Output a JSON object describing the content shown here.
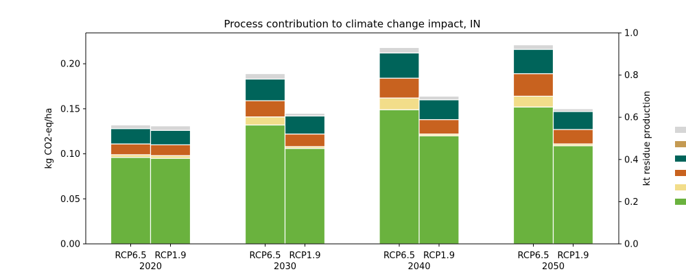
{
  "chart_data": {
    "type": "bar",
    "title": "Process contribution to climate change impact, IN",
    "ylabel": "kg CO2-eq/ha",
    "ylabel_right": "kt residue production",
    "ylim": [
      0,
      0.2343
    ],
    "ylim_right": [
      0,
      1.0
    ],
    "yticks": [
      "0.00",
      "0.05",
      "0.10",
      "0.15",
      "0.20"
    ],
    "yticks_right": [
      "0.0",
      "0.2",
      "0.4",
      "0.6",
      "0.8",
      "1.0"
    ],
    "groups": [
      "2020",
      "2030",
      "2040",
      "2050"
    ],
    "scenarios": [
      "RCP6.5",
      "RCP1.9"
    ],
    "stack_colors": [
      "#6ab23e",
      "#f2dd8a",
      "#c8621f",
      "#00645a",
      "#c49a52",
      "#d6d6d6"
    ],
    "bars": [
      {
        "group": "2020",
        "scenario": "RCP6.5",
        "values": [
          0.096,
          0.003,
          0.012,
          0.017,
          0.0,
          0.004
        ]
      },
      {
        "group": "2020",
        "scenario": "RCP1.9",
        "values": [
          0.095,
          0.003,
          0.012,
          0.016,
          0.0,
          0.005
        ]
      },
      {
        "group": "2030",
        "scenario": "RCP6.5",
        "values": [
          0.132,
          0.009,
          0.018,
          0.024,
          0.0,
          0.006
        ]
      },
      {
        "group": "2030",
        "scenario": "RCP1.9",
        "values": [
          0.106,
          0.002,
          0.014,
          0.02,
          0.0,
          0.003
        ]
      },
      {
        "group": "2040",
        "scenario": "RCP6.5",
        "values": [
          0.149,
          0.013,
          0.022,
          0.028,
          0.0,
          0.006
        ]
      },
      {
        "group": "2040",
        "scenario": "RCP1.9",
        "values": [
          0.12,
          0.002,
          0.016,
          0.022,
          0.0,
          0.004
        ]
      },
      {
        "group": "2050",
        "scenario": "RCP6.5",
        "values": [
          0.152,
          0.012,
          0.025,
          0.027,
          0.0,
          0.005
        ]
      },
      {
        "group": "2050",
        "scenario": "RCP1.9",
        "values": [
          0.109,
          0.002,
          0.016,
          0.02,
          0.0,
          0.003
        ]
      }
    ],
    "legend": {
      "placement": "right",
      "colors": [
        "#d6d6d6",
        "#c49a52",
        "#00645a",
        "#c8621f",
        "#f2dd8a",
        "#6ab23e"
      ]
    }
  }
}
